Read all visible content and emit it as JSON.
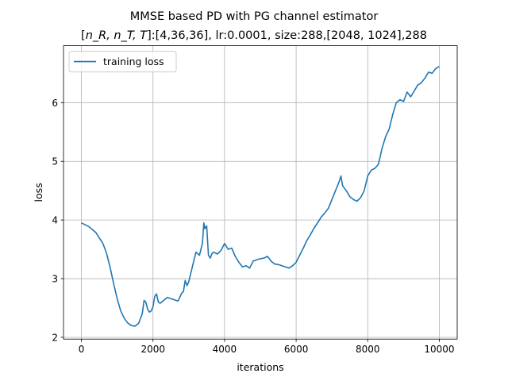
{
  "chart_data": {
    "type": "line",
    "title_line1": "MMSE based PD with PG channel estimator",
    "title_line2_prefix": "[",
    "title_line2_math": "n_R, n_T, T",
    "title_line2_suffix": "]:[4,36,36], lr:0.0001, size:288,[2048, 1024],288",
    "xlabel": "iterations",
    "ylabel": "loss",
    "xlim": [
      -500,
      10500
    ],
    "ylim": [
      1.97,
      6.97
    ],
    "xticks": [
      0,
      2000,
      4000,
      6000,
      8000,
      10000
    ],
    "xtick_labels": [
      "0",
      "2000",
      "4000",
      "6000",
      "8000",
      "10000"
    ],
    "yticks": [
      2,
      3,
      4,
      5,
      6
    ],
    "ytick_labels": [
      "2",
      "3",
      "4",
      "5",
      "6"
    ],
    "grid": true,
    "legend_position": "top-left",
    "series": [
      {
        "name": "training loss",
        "color": "#1f77b4",
        "x": [
          0,
          200,
          400,
          600,
          700,
          800,
          900,
          1000,
          1100,
          1200,
          1300,
          1400,
          1500,
          1600,
          1700,
          1750,
          1800,
          1850,
          1900,
          1950,
          2000,
          2050,
          2100,
          2150,
          2200,
          2300,
          2400,
          2500,
          2600,
          2700,
          2800,
          2850,
          2900,
          2950,
          3000,
          3100,
          3200,
          3300,
          3380,
          3420,
          3450,
          3500,
          3550,
          3600,
          3650,
          3700,
          3800,
          3900,
          4000,
          4100,
          4200,
          4300,
          4400,
          4500,
          4600,
          4700,
          4800,
          4900,
          5000,
          5100,
          5200,
          5300,
          5400,
          5500,
          5600,
          5700,
          5800,
          5900,
          6000,
          6100,
          6200,
          6300,
          6400,
          6500,
          6600,
          6700,
          6800,
          6900,
          7000,
          7100,
          7200,
          7250,
          7300,
          7400,
          7500,
          7600,
          7700,
          7800,
          7900,
          8000,
          8100,
          8200,
          8300,
          8400,
          8500,
          8600,
          8700,
          8800,
          8900,
          9000,
          9100,
          9200,
          9300,
          9400,
          9500,
          9600,
          9700,
          9800,
          9900,
          10000
        ],
        "y": [
          3.95,
          3.89,
          3.79,
          3.6,
          3.44,
          3.2,
          2.92,
          2.66,
          2.45,
          2.32,
          2.24,
          2.2,
          2.19,
          2.24,
          2.4,
          2.63,
          2.6,
          2.48,
          2.43,
          2.45,
          2.52,
          2.7,
          2.74,
          2.6,
          2.58,
          2.63,
          2.68,
          2.66,
          2.64,
          2.62,
          2.75,
          2.78,
          2.97,
          2.88,
          2.95,
          3.2,
          3.45,
          3.4,
          3.6,
          3.95,
          3.85,
          3.9,
          3.4,
          3.35,
          3.43,
          3.45,
          3.42,
          3.48,
          3.6,
          3.5,
          3.52,
          3.38,
          3.28,
          3.2,
          3.22,
          3.18,
          3.3,
          3.32,
          3.34,
          3.35,
          3.38,
          3.3,
          3.25,
          3.24,
          3.22,
          3.2,
          3.18,
          3.22,
          3.28,
          3.4,
          3.52,
          3.65,
          3.75,
          3.86,
          3.95,
          4.05,
          4.12,
          4.2,
          4.35,
          4.5,
          4.65,
          4.75,
          4.58,
          4.5,
          4.4,
          4.35,
          4.32,
          4.38,
          4.5,
          4.75,
          4.85,
          4.88,
          4.95,
          5.22,
          5.42,
          5.55,
          5.8,
          6.0,
          6.05,
          6.02,
          6.18,
          6.1,
          6.2,
          6.3,
          6.34,
          6.42,
          6.52,
          6.5,
          6.58,
          6.62
        ]
      }
    ]
  }
}
